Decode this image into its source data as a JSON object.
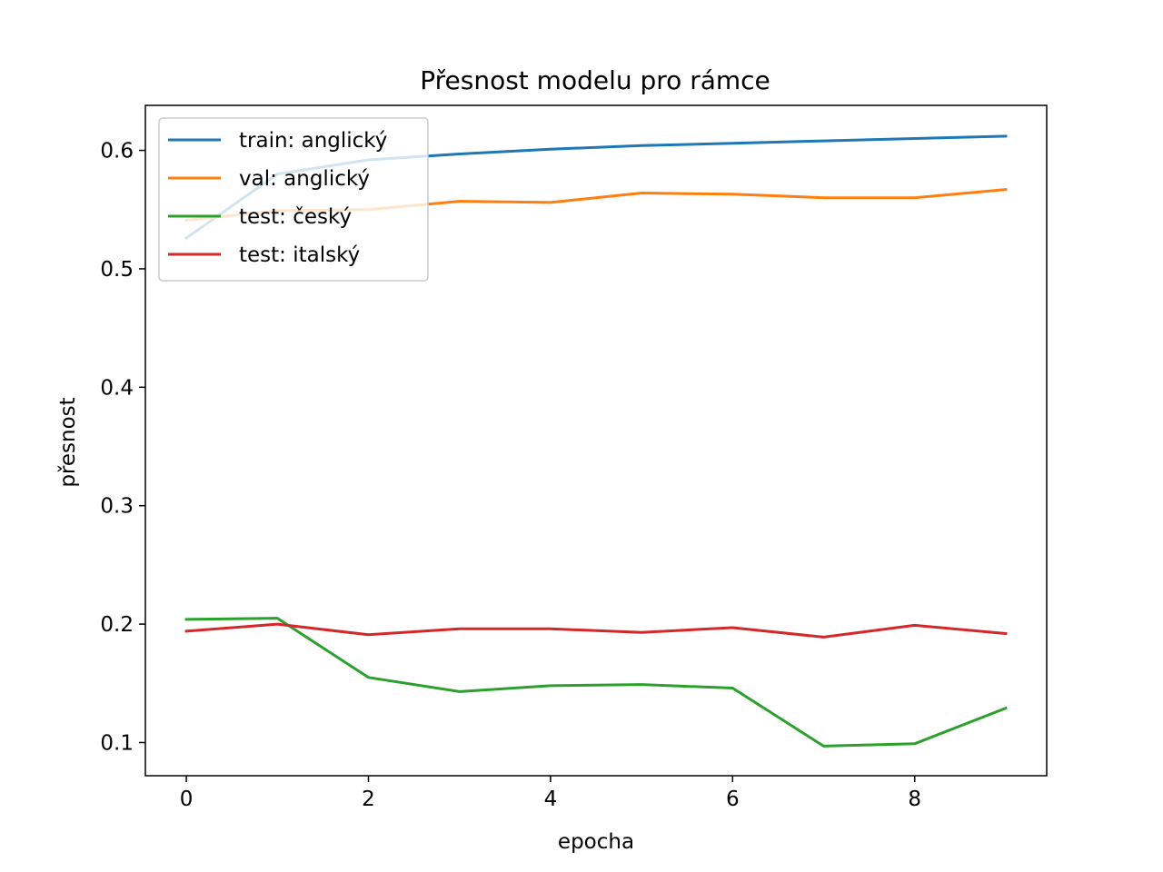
{
  "chart_data": {
    "type": "line",
    "title": "Přesnost modelu pro rámce",
    "xlabel": "epocha",
    "ylabel": "přesnost",
    "x": [
      0,
      1,
      2,
      3,
      4,
      5,
      6,
      7,
      8,
      9
    ],
    "xlim": [
      -0.45,
      9.45
    ],
    "ylim": [
      0.072,
      0.638
    ],
    "xticks": [
      0,
      2,
      4,
      6,
      8
    ],
    "yticks": [
      0.1,
      0.2,
      0.3,
      0.4,
      0.5,
      0.6
    ],
    "grid": false,
    "legend_position": "upper-left",
    "series": [
      {
        "name": "train: anglický",
        "color": "#1f77b4",
        "values": [
          0.526,
          0.58,
          0.592,
          0.597,
          0.601,
          0.604,
          0.606,
          0.608,
          0.61,
          0.612
        ]
      },
      {
        "name": "val: anglický",
        "color": "#ff7f0e",
        "values": [
          0.541,
          0.549,
          0.55,
          0.557,
          0.556,
          0.564,
          0.563,
          0.56,
          0.56,
          0.567
        ]
      },
      {
        "name": "test: český",
        "color": "#2ca02c",
        "values": [
          0.204,
          0.205,
          0.155,
          0.143,
          0.148,
          0.149,
          0.146,
          0.097,
          0.099,
          0.129
        ]
      },
      {
        "name": "test: italský",
        "color": "#d62728",
        "values": [
          0.194,
          0.2,
          0.191,
          0.196,
          0.196,
          0.193,
          0.197,
          0.189,
          0.199,
          0.192
        ]
      }
    ]
  }
}
